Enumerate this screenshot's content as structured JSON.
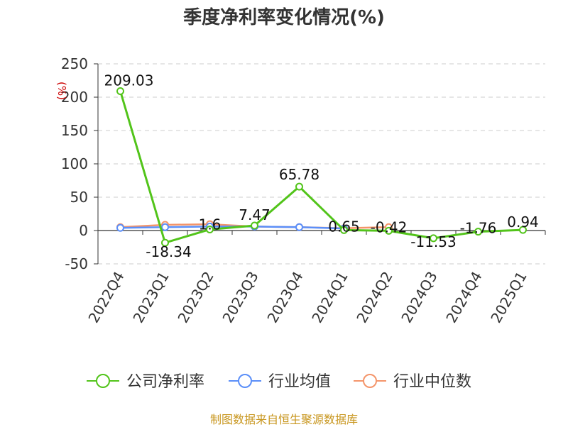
{
  "chart_data": {
    "type": "line",
    "title": "季度净利率变化情况(%)",
    "ylabel": "(%)",
    "ylim": [
      -50,
      250
    ],
    "yticks": [
      250,
      200,
      150,
      100,
      50,
      0,
      -50
    ],
    "grid": true,
    "legend_position": "bottom",
    "categories": [
      "2022Q4",
      "2023Q1",
      "2023Q2",
      "2023Q3",
      "2023Q4",
      "2024Q1",
      "2024Q2",
      "2024Q3",
      "2024Q4",
      "2025Q1"
    ],
    "series": [
      {
        "name": "公司净利率",
        "color": "#52c41a",
        "values": [
          209.03,
          -18.34,
          1.6,
          7.47,
          65.78,
          0.65,
          -0.42,
          -11.53,
          -1.76,
          0.94
        ],
        "labels": [
          "209.03",
          "-18.34",
          "1.6",
          "7.47",
          "65.78",
          "0.65",
          "-0.42",
          "-11.53",
          "-1.76",
          "0.94"
        ]
      },
      {
        "name": "行业均值",
        "color": "#5b8ff9",
        "values": [
          4,
          5,
          6,
          6,
          5,
          3,
          null,
          null,
          null,
          null
        ]
      },
      {
        "name": "行业中位数",
        "color": "#f4956a",
        "values": [
          5,
          8.5,
          9.5,
          6,
          5,
          3.5,
          5,
          null,
          null,
          null
        ]
      }
    ]
  },
  "source": "制图数据来自恒生聚源数据库"
}
